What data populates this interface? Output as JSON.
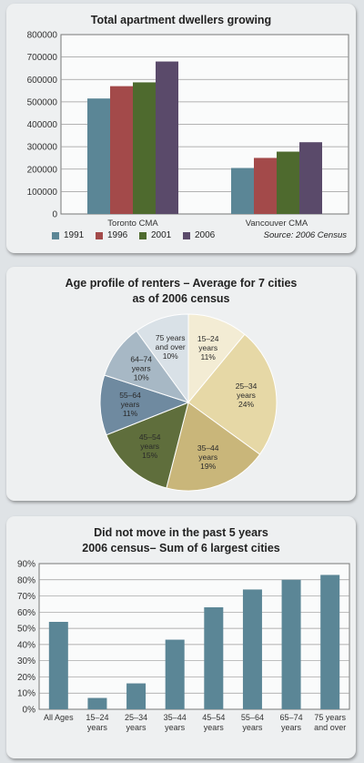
{
  "chart_data": [
    {
      "type": "bar",
      "title": "Total apartment dwellers growing",
      "categories": [
        "Toronto CMA",
        "Vancouver CMA"
      ],
      "series": [
        {
          "name": "1991",
          "values": [
            515000,
            205000
          ]
        },
        {
          "name": "1996",
          "values": [
            570000,
            250000
          ]
        },
        {
          "name": "2001",
          "values": [
            587000,
            278000
          ]
        },
        {
          "name": "2006",
          "values": [
            680000,
            320000
          ]
        }
      ],
      "ylim": [
        0,
        800000
      ],
      "yticks": [
        "0",
        "100000",
        "200000",
        "300000",
        "400000",
        "500000",
        "600000",
        "700000",
        "800000"
      ],
      "colors": [
        "#5b8696",
        "#a34a4a",
        "#4e6a2e",
        "#5a4a6a"
      ],
      "grid": true,
      "legend": "bottom",
      "source": "Source: 2006 Census"
    },
    {
      "type": "pie",
      "title_lines": [
        "Age profile of renters – Average for 7 cities",
        "as of 2006 census"
      ],
      "slices": [
        {
          "label_lines": [
            "15–24",
            "years"
          ],
          "pct": "11%",
          "value": 11,
          "color": "#f3ecd4"
        },
        {
          "label_lines": [
            "25–34",
            "years"
          ],
          "pct": "24%",
          "value": 24,
          "color": "#e6d8a6"
        },
        {
          "label_lines": [
            "35–44",
            "years"
          ],
          "pct": "19%",
          "value": 19,
          "color": "#c9b67a"
        },
        {
          "label_lines": [
            "45–54",
            "years"
          ],
          "pct": "15%",
          "value": 15,
          "color": "#5f6e3c"
        },
        {
          "label_lines": [
            "55–64",
            "years"
          ],
          "pct": "11%",
          "value": 11,
          "color": "#6f8aa0"
        },
        {
          "label_lines": [
            "64–74",
            "years"
          ],
          "pct": "10%",
          "value": 10,
          "color": "#a7b8c5"
        },
        {
          "label_lines": [
            "75 years",
            "and over"
          ],
          "pct": "10%",
          "value": 10,
          "color": "#d9e1e7"
        }
      ]
    },
    {
      "type": "bar",
      "title_lines": [
        "Did not move in the past 5 years",
        "2006 census– Sum of 6 largest cities"
      ],
      "categories": [
        [
          "All Ages"
        ],
        [
          "15–24",
          "years"
        ],
        [
          "25–34",
          "years"
        ],
        [
          "35–44",
          "years"
        ],
        [
          "45–54",
          "years"
        ],
        [
          "55–64",
          "years"
        ],
        [
          "65–74",
          "years"
        ],
        [
          "75 years",
          "and over"
        ]
      ],
      "values": [
        54,
        7,
        16,
        43,
        63,
        74,
        80,
        83
      ],
      "ylim": [
        0,
        90
      ],
      "yticks": [
        "0%",
        "10%",
        "20%",
        "30%",
        "40%",
        "50%",
        "60%",
        "70%",
        "80%",
        "90%"
      ],
      "color": "#5b8696",
      "grid": true
    }
  ]
}
